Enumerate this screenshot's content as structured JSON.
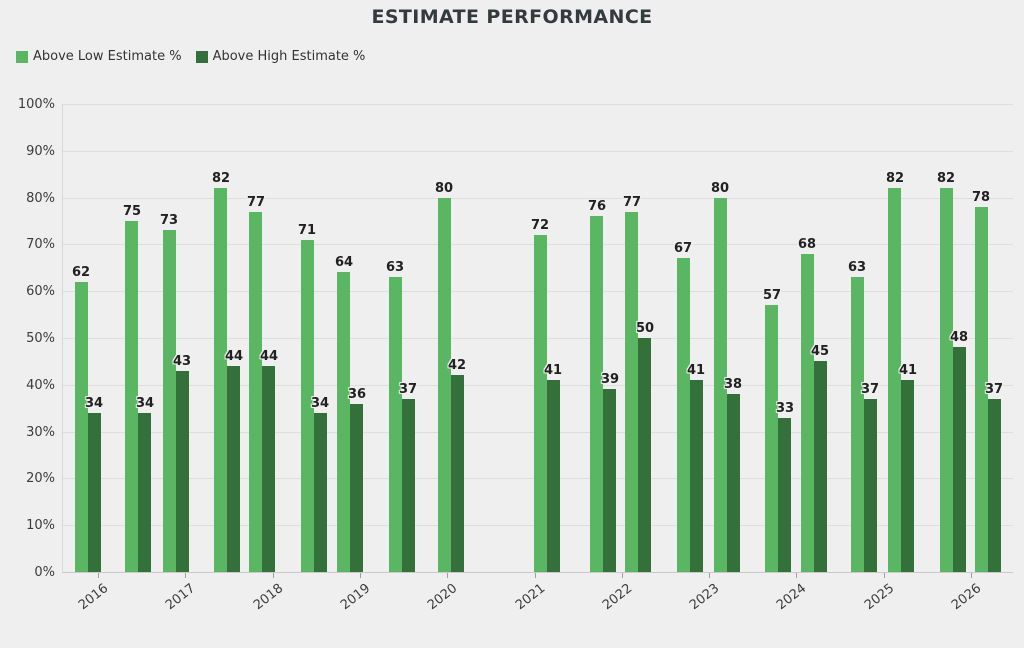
{
  "title": "ESTIMATE PERFORMANCE",
  "legend": [
    {
      "label": "Above Low Estimate %",
      "color": "#5ab663"
    },
    {
      "label": "Above High Estimate %",
      "color": "#33703a"
    }
  ],
  "chart_data": {
    "type": "bar",
    "title": "ESTIMATE PERFORMANCE",
    "grid": true,
    "legend_position": "top-left",
    "y_axis": {
      "min": 0,
      "max": 100,
      "step": 10,
      "suffix": "%"
    },
    "x_axis": {
      "tick_years": [
        2016,
        2017,
        2018,
        2019,
        2020,
        2021,
        2022,
        2023,
        2024,
        2025,
        2026
      ]
    },
    "series": [
      {
        "name": "Above Low Estimate %",
        "color": "#5ab663"
      },
      {
        "name": "Above High Estimate %",
        "color": "#33703a"
      }
    ],
    "groups": [
      {
        "x_year": 2015.88,
        "low": 62,
        "high": 34
      },
      {
        "x_year": 2016.46,
        "low": 75,
        "high": 34
      },
      {
        "x_year": 2016.89,
        "low": 73,
        "high": 43
      },
      {
        "x_year": 2017.48,
        "low": 82,
        "high": 44
      },
      {
        "x_year": 2017.88,
        "low": 77,
        "high": 44
      },
      {
        "x_year": 2018.47,
        "low": 71,
        "high": 34
      },
      {
        "x_year": 2018.89,
        "low": 64,
        "high": 36
      },
      {
        "x_year": 2019.48,
        "low": 63,
        "high": 37
      },
      {
        "x_year": 2020.04,
        "low": 80,
        "high": 42
      },
      {
        "x_year": 2021.14,
        "low": 72,
        "high": 41
      },
      {
        "x_year": 2021.79,
        "low": 76,
        "high": 39
      },
      {
        "x_year": 2022.19,
        "low": 77,
        "high": 50
      },
      {
        "x_year": 2022.78,
        "low": 67,
        "high": 41
      },
      {
        "x_year": 2023.2,
        "low": 80,
        "high": 38
      },
      {
        "x_year": 2023.79,
        "low": 57,
        "high": 33
      },
      {
        "x_year": 2024.2,
        "low": 68,
        "high": 45
      },
      {
        "x_year": 2024.77,
        "low": 63,
        "high": 37
      },
      {
        "x_year": 2025.2,
        "low": 82,
        "high": 41
      },
      {
        "x_year": 2025.79,
        "low": 82,
        "high": 48
      },
      {
        "x_year": 2026.19,
        "low": 78,
        "high": 37
      }
    ]
  }
}
